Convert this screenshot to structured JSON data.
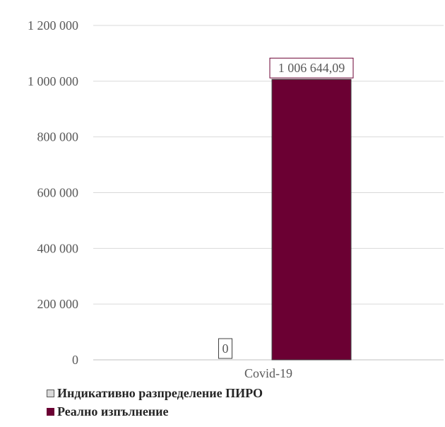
{
  "chart_data": {
    "type": "bar",
    "categories": [
      "Covid-19"
    ],
    "series": [
      {
        "name": "Индикативно разпределение ПИРО",
        "values": [
          0
        ],
        "color": "#d9d9d9",
        "label": "0"
      },
      {
        "name": "Реално изпълнение",
        "values": [
          1006644.09
        ],
        "color": "#6b0033",
        "label": "1 006 644,09"
      }
    ],
    "ylim": [
      0,
      1200000
    ],
    "yticks": [
      0,
      200000,
      400000,
      600000,
      800000,
      1000000,
      1200000
    ],
    "ytick_labels": [
      "0",
      "200 000",
      "400 000",
      "600 000",
      "800 000",
      "1 000 000",
      "1 200 000"
    ],
    "grid": true,
    "legend_position": "bottom-left",
    "title": "",
    "xlabel": "",
    "ylabel": ""
  }
}
